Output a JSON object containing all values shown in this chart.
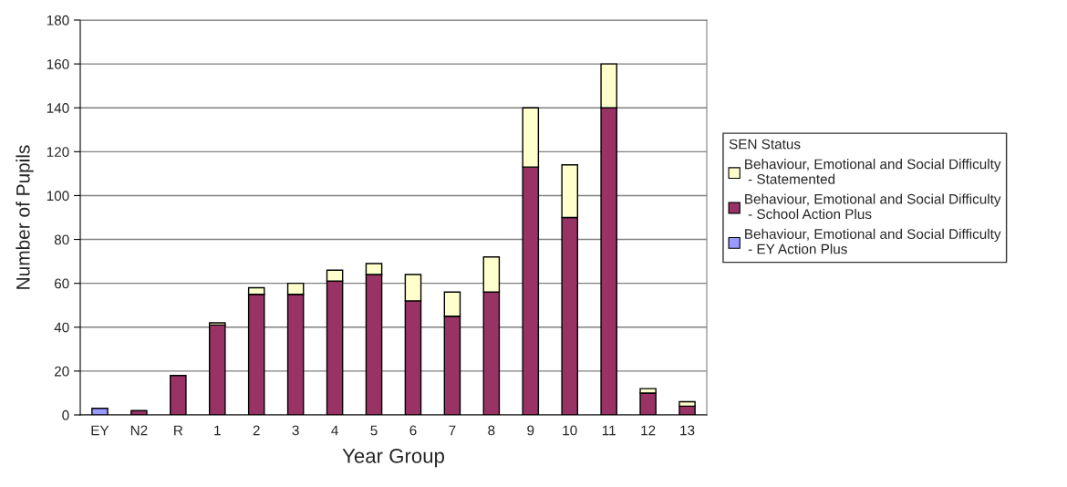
{
  "chart_data": {
    "type": "bar",
    "stacked": true,
    "xlabel": "Year Group",
    "ylabel": "Number of Pupils",
    "legend_title": "SEN Status",
    "categories": [
      "EY",
      "N2",
      "R",
      "1",
      "2",
      "3",
      "4",
      "5",
      "6",
      "7",
      "8",
      "9",
      "10",
      "11",
      "12",
      "13"
    ],
    "series": [
      {
        "name": "Behaviour, Emotional and Social Difficulty\n - EY Action Plus",
        "color": "#9999ff",
        "values": [
          3,
          null,
          null,
          null,
          null,
          null,
          null,
          null,
          null,
          null,
          null,
          null,
          null,
          null,
          null,
          null
        ]
      },
      {
        "name": "Behaviour, Emotional and Social Difficulty\n - School Action Plus",
        "color": "#993366",
        "values": [
          null,
          2,
          18,
          41,
          55,
          55,
          61,
          64,
          52,
          45,
          56,
          113,
          90,
          140,
          10,
          4
        ]
      },
      {
        "name": "Behaviour, Emotional and Social Difficulty\n - Statemented",
        "color": "#ffffcc",
        "values": [
          null,
          null,
          null,
          1,
          3,
          5,
          5,
          5,
          12,
          11,
          16,
          27,
          24,
          20,
          2,
          2
        ]
      }
    ],
    "ylim": [
      0,
      180
    ],
    "yticks": [
      0,
      20,
      40,
      60,
      80,
      100,
      120,
      140,
      160,
      180
    ],
    "grid": "y",
    "legend": "right"
  }
}
